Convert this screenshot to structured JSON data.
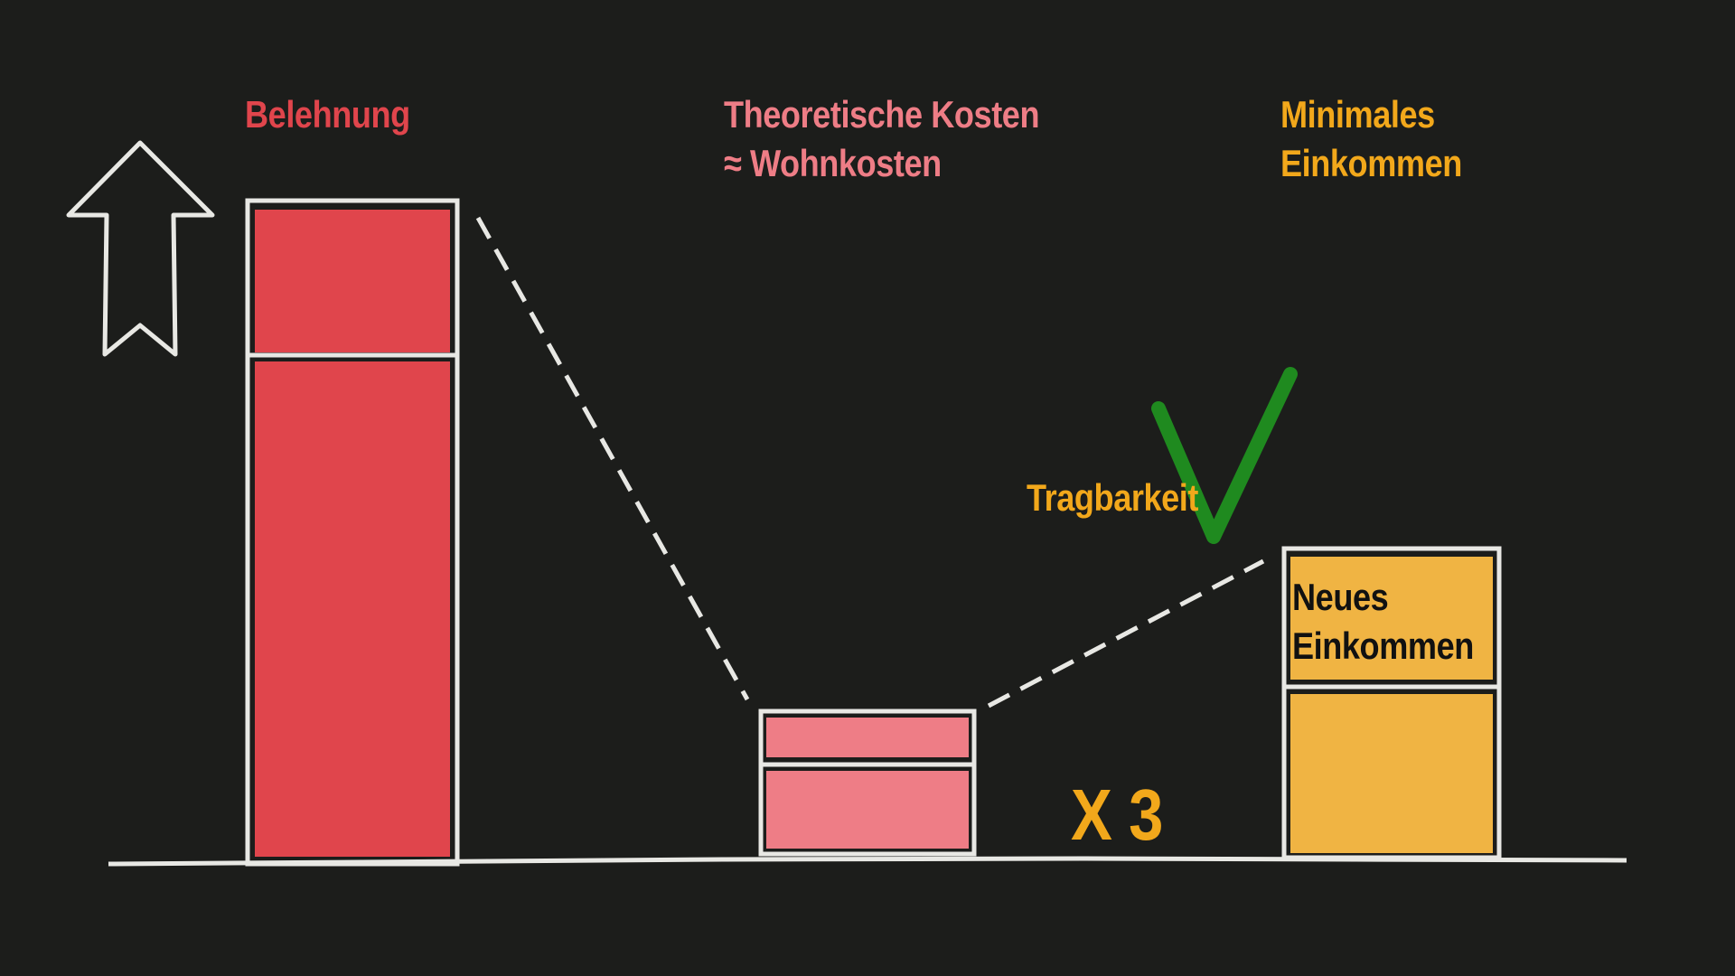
{
  "labels": {
    "belehnung": "Belehnung",
    "theoretische_line1": "Theoretische Kosten",
    "theoretische_line2": "≈ Wohnkosten",
    "minimales_line1": "Minimales",
    "minimales_line2": "Einkommen",
    "tragbarkeit": "Tragbarkeit",
    "neues_line1": "Neues",
    "neues_line2": "Einkommen",
    "multiplier": "X 3"
  },
  "icons": [
    "arrow-up-icon",
    "checkmark-icon"
  ],
  "colors": {
    "background": "#1c1d1b",
    "chalk": "#e8e8e4",
    "belehnung": "#e0454c",
    "kosten": "#ee7d86",
    "einkommen": "#f2a81b",
    "einkommen_fill": "#f0b443",
    "check": "#1f8a1f"
  }
}
